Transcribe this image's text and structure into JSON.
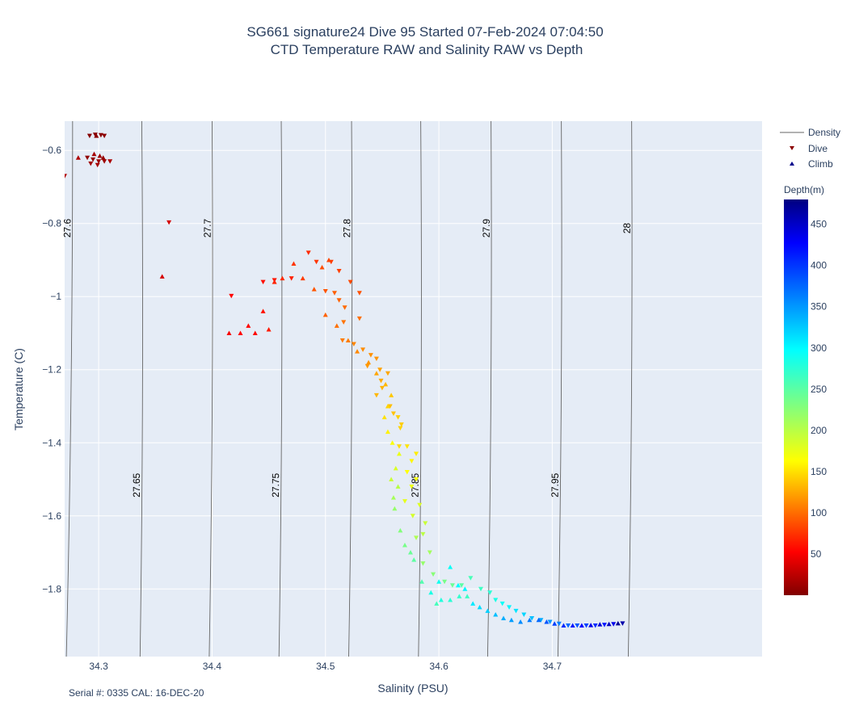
{
  "chart_data": {
    "type": "scatter",
    "title": "SG661 signature24 Dive 95 Started 07-Feb-2024 07:04:50",
    "subtitle": "CTD Temperature RAW and Salinity RAW vs Depth",
    "xlabel": "Salinity (PSU)",
    "ylabel": "Temperature (C)",
    "xlim": [
      34.27,
      34.885
    ],
    "ylim": [
      -1.985,
      -0.52
    ],
    "x_ticks": [
      34.3,
      34.4,
      34.5,
      34.6,
      34.7
    ],
    "x_tick_labels": [
      "34.3",
      "34.4",
      "34.5",
      "34.6",
      "34.7"
    ],
    "y_ticks": [
      -0.6,
      -0.8,
      -1.0,
      -1.2,
      -1.4,
      -1.6,
      -1.8
    ],
    "y_tick_labels": [
      "−0.6",
      "−0.8",
      "−1",
      "−1.2",
      "−1.4",
      "−1.6",
      "−1.8"
    ],
    "grid": true,
    "legend": {
      "placement": "top-right",
      "entries": [
        {
          "label": "Density",
          "marker": "line"
        },
        {
          "label": "Dive",
          "marker": "triangle-down",
          "color": "#8b0000"
        },
        {
          "label": "Climb",
          "marker": "triangle-up",
          "color": "#00008b"
        }
      ]
    },
    "colorbar": {
      "title": "Depth(m)",
      "range": [
        0,
        480
      ],
      "ticks": [
        50,
        100,
        150,
        200,
        250,
        300,
        350,
        400,
        450
      ],
      "tick_labels": [
        "50",
        "100",
        "150",
        "200",
        "250",
        "300",
        "350",
        "400",
        "450"
      ],
      "colorscale": "jet (dark red at surface to dark blue at depth)"
    },
    "density_contours": [
      {
        "sigma": 27.6,
        "label": "27.6",
        "x_at_top": 34.277,
        "x_at_bottom": 34.2715
      },
      {
        "sigma": 27.65,
        "label": "27.65",
        "x_at_top": 34.338,
        "x_at_bottom": 34.3365
      },
      {
        "sigma": 27.7,
        "label": "27.7",
        "x_at_top": 34.4,
        "x_at_bottom": 34.3975
      },
      {
        "sigma": 27.75,
        "label": "27.75",
        "x_at_top": 34.461,
        "x_at_bottom": 34.459
      },
      {
        "sigma": 27.8,
        "label": "27.8",
        "x_at_top": 34.523,
        "x_at_bottom": 34.5205
      },
      {
        "sigma": 27.85,
        "label": "27.85",
        "x_at_top": 34.584,
        "x_at_bottom": 34.582
      },
      {
        "sigma": 27.9,
        "label": "27.9",
        "x_at_top": 34.646,
        "x_at_bottom": 34.643
      },
      {
        "sigma": 27.95,
        "label": "27.95",
        "x_at_top": 34.708,
        "x_at_bottom": 34.705
      },
      {
        "sigma": 28.0,
        "label": "28",
        "x_at_top": 34.77,
        "x_at_bottom": 34.767
      }
    ],
    "series": [
      {
        "name": "Dive",
        "marker": "triangle-down",
        "points": [
          [
            34.292,
            -0.56,
            3
          ],
          [
            34.297,
            -0.557,
            4
          ],
          [
            34.302,
            -0.558,
            5
          ],
          [
            34.305,
            -0.56,
            6
          ],
          [
            34.29,
            -0.62,
            8
          ],
          [
            34.295,
            -0.625,
            10
          ],
          [
            34.3,
            -0.63,
            12
          ],
          [
            34.305,
            -0.63,
            14
          ],
          [
            34.293,
            -0.636,
            16
          ],
          [
            34.299,
            -0.64,
            18
          ],
          [
            34.31,
            -0.63,
            20
          ],
          [
            34.27,
            -0.67,
            24
          ],
          [
            34.362,
            -0.797,
            40
          ],
          [
            34.417,
            -0.998,
            60
          ],
          [
            34.445,
            -0.96,
            66
          ],
          [
            34.455,
            -0.955,
            70
          ],
          [
            34.47,
            -0.95,
            75
          ],
          [
            34.485,
            -0.88,
            80
          ],
          [
            34.492,
            -0.905,
            85
          ],
          [
            34.505,
            -0.905,
            88
          ],
          [
            34.512,
            -0.93,
            90
          ],
          [
            34.522,
            -0.96,
            94
          ],
          [
            34.53,
            -0.99,
            98
          ],
          [
            34.5,
            -0.985,
            100
          ],
          [
            34.508,
            -0.99,
            104
          ],
          [
            34.512,
            -1.01,
            106
          ],
          [
            34.517,
            -1.03,
            110
          ],
          [
            34.53,
            -1.06,
            112
          ],
          [
            34.516,
            -1.07,
            114
          ],
          [
            34.515,
            -1.12,
            118
          ],
          [
            34.525,
            -1.13,
            122
          ],
          [
            34.533,
            -1.145,
            126
          ],
          [
            34.54,
            -1.16,
            128
          ],
          [
            34.545,
            -1.17,
            130
          ],
          [
            34.537,
            -1.19,
            132
          ],
          [
            34.548,
            -1.2,
            136
          ],
          [
            34.555,
            -1.21,
            138
          ],
          [
            34.549,
            -1.23,
            140
          ],
          [
            34.55,
            -1.25,
            144
          ],
          [
            34.545,
            -1.27,
            146
          ],
          [
            34.557,
            -1.3,
            150
          ],
          [
            34.56,
            -1.32,
            152
          ],
          [
            34.567,
            -1.35,
            156
          ],
          [
            34.564,
            -1.33,
            158
          ],
          [
            34.566,
            -1.36,
            160
          ],
          [
            34.565,
            -1.41,
            164
          ],
          [
            34.572,
            -1.41,
            168
          ],
          [
            34.58,
            -1.43,
            172
          ],
          [
            34.576,
            -1.45,
            176
          ],
          [
            34.572,
            -1.48,
            180
          ],
          [
            34.58,
            -1.5,
            184
          ],
          [
            34.576,
            -1.52,
            188
          ],
          [
            34.57,
            -1.56,
            192
          ],
          [
            34.583,
            -1.57,
            196
          ],
          [
            34.577,
            -1.6,
            200
          ],
          [
            34.588,
            -1.62,
            206
          ],
          [
            34.586,
            -1.65,
            212
          ],
          [
            34.58,
            -1.66,
            218
          ],
          [
            34.592,
            -1.7,
            224
          ],
          [
            34.586,
            -1.73,
            230
          ],
          [
            34.595,
            -1.76,
            236
          ],
          [
            34.605,
            -1.78,
            244
          ],
          [
            34.612,
            -1.79,
            250
          ],
          [
            34.62,
            -1.79,
            258
          ],
          [
            34.628,
            -1.77,
            266
          ],
          [
            34.637,
            -1.8,
            272
          ],
          [
            34.645,
            -1.81,
            280
          ],
          [
            34.65,
            -1.83,
            288
          ],
          [
            34.656,
            -1.84,
            296
          ],
          [
            34.662,
            -1.85,
            304
          ],
          [
            34.668,
            -1.86,
            312
          ],
          [
            34.675,
            -1.87,
            320
          ],
          [
            34.682,
            -1.88,
            330
          ],
          [
            34.69,
            -1.885,
            340
          ],
          [
            34.698,
            -1.89,
            350
          ],
          [
            34.706,
            -1.895,
            360
          ],
          [
            34.714,
            -1.9,
            370
          ],
          [
            34.722,
            -1.9,
            380
          ],
          [
            34.73,
            -1.9,
            390
          ],
          [
            34.738,
            -1.9,
            400
          ],
          [
            34.746,
            -1.898,
            410
          ],
          [
            34.754,
            -1.896,
            430
          ],
          [
            34.762,
            -1.894,
            460
          ]
        ]
      },
      {
        "name": "Climb",
        "marker": "triangle-up",
        "points": [
          [
            34.758,
            -1.894,
            470
          ],
          [
            34.75,
            -1.896,
            450
          ],
          [
            34.742,
            -1.897,
            440
          ],
          [
            34.734,
            -1.899,
            430
          ],
          [
            34.726,
            -1.9,
            420
          ],
          [
            34.718,
            -1.9,
            410
          ],
          [
            34.71,
            -1.9,
            400
          ],
          [
            34.702,
            -1.895,
            390
          ],
          [
            34.695,
            -1.89,
            380
          ],
          [
            34.688,
            -1.885,
            370
          ],
          [
            34.68,
            -1.885,
            362
          ],
          [
            34.672,
            -1.89,
            354
          ],
          [
            34.664,
            -1.885,
            346
          ],
          [
            34.657,
            -1.88,
            338
          ],
          [
            34.65,
            -1.87,
            330
          ],
          [
            34.643,
            -1.86,
            322
          ],
          [
            34.636,
            -1.85,
            316
          ],
          [
            34.63,
            -1.84,
            310
          ],
          [
            34.623,
            -1.8,
            304
          ],
          [
            34.617,
            -1.79,
            300
          ],
          [
            34.61,
            -1.74,
            296
          ],
          [
            34.6,
            -1.78,
            292
          ],
          [
            34.593,
            -1.81,
            288
          ],
          [
            34.602,
            -1.83,
            284
          ],
          [
            34.61,
            -1.83,
            280
          ],
          [
            34.618,
            -1.82,
            276
          ],
          [
            34.625,
            -1.82,
            272
          ],
          [
            34.598,
            -1.84,
            268
          ],
          [
            34.585,
            -1.78,
            262
          ],
          [
            34.578,
            -1.72,
            256
          ],
          [
            34.575,
            -1.7,
            250
          ],
          [
            34.57,
            -1.68,
            244
          ],
          [
            34.566,
            -1.64,
            238
          ],
          [
            34.561,
            -1.58,
            230
          ],
          [
            34.56,
            -1.55,
            222
          ],
          [
            34.564,
            -1.52,
            214
          ],
          [
            34.558,
            -1.5,
            206
          ],
          [
            34.562,
            -1.47,
            198
          ],
          [
            34.565,
            -1.43,
            190
          ],
          [
            34.559,
            -1.4,
            182
          ],
          [
            34.555,
            -1.37,
            174
          ],
          [
            34.552,
            -1.33,
            166
          ],
          [
            34.555,
            -1.3,
            160
          ],
          [
            34.558,
            -1.27,
            154
          ],
          [
            34.553,
            -1.24,
            146
          ],
          [
            34.545,
            -1.21,
            138
          ],
          [
            34.538,
            -1.18,
            130
          ],
          [
            34.528,
            -1.15,
            124
          ],
          [
            34.52,
            -1.12,
            118
          ],
          [
            34.51,
            -1.08,
            112
          ],
          [
            34.5,
            -1.05,
            106
          ],
          [
            34.49,
            -0.98,
            100
          ],
          [
            34.497,
            -0.92,
            96
          ],
          [
            34.503,
            -0.9,
            92
          ],
          [
            34.48,
            -0.95,
            88
          ],
          [
            34.472,
            -0.91,
            84
          ],
          [
            34.462,
            -0.95,
            80
          ],
          [
            34.455,
            -0.96,
            76
          ],
          [
            34.45,
            -1.09,
            72
          ],
          [
            34.445,
            -1.04,
            68
          ],
          [
            34.438,
            -1.1,
            64
          ],
          [
            34.432,
            -1.08,
            62
          ],
          [
            34.425,
            -1.1,
            60
          ],
          [
            34.415,
            -1.1,
            56
          ],
          [
            34.356,
            -0.945,
            40
          ],
          [
            34.282,
            -0.62,
            22
          ],
          [
            34.296,
            -0.61,
            18
          ],
          [
            34.301,
            -0.615,
            14
          ],
          [
            34.304,
            -0.62,
            10
          ],
          [
            34.298,
            -0.56,
            6
          ]
        ]
      }
    ]
  },
  "footer": {
    "calibration_text": "Serial #: 0335  CAL: 16-DEC-20"
  }
}
